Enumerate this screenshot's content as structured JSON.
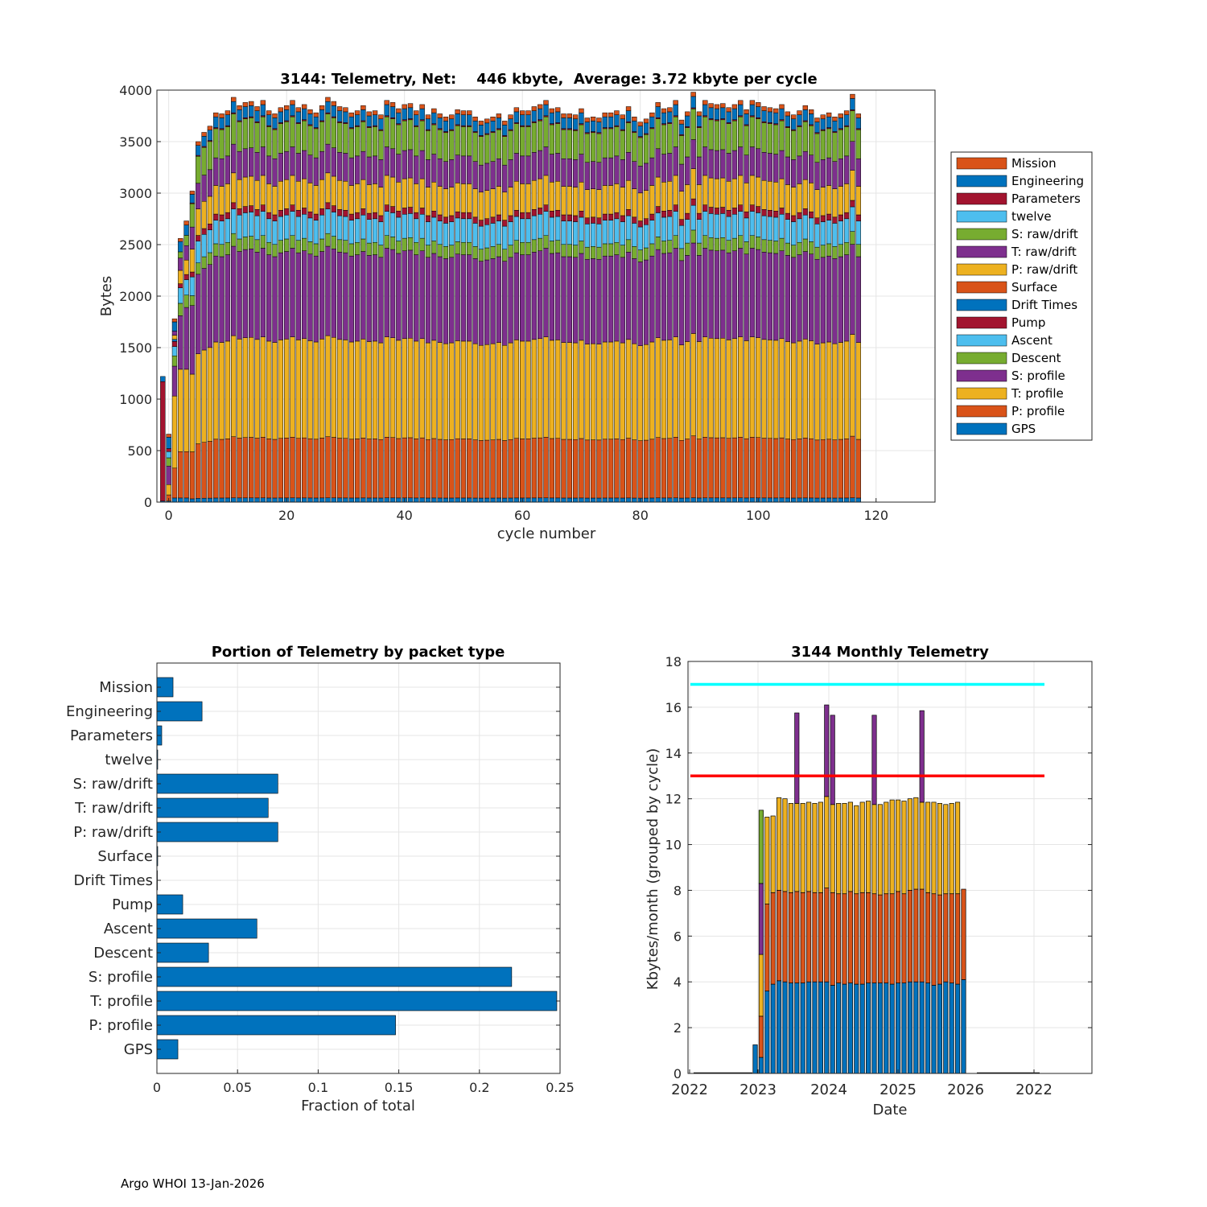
{
  "footer": "Argo WHOI 13-Jan-2026",
  "colors": {
    "blue": "#0072BD",
    "orange": "#D95319",
    "yellow": "#EDB120",
    "purple": "#7E2F8E",
    "green": "#77AC30",
    "cyan": "#4DBEEE",
    "red": "#A2142F",
    "limit_high": "#00FFFF",
    "limit_low": "#FF0000"
  },
  "chart_data": [
    {
      "id": "telemetry_per_cycle",
      "type": "bar",
      "stacked": true,
      "title": "3144: Telemetry, Net:    446 kbyte,  Average: 3.72 kbyte per cycle",
      "xlabel": "cycle number",
      "ylabel": "Bytes",
      "xlim": [
        -2,
        130
      ],
      "ylim": [
        0,
        4000
      ],
      "xticks": [
        0,
        20,
        40,
        60,
        80,
        100,
        120
      ],
      "yticks": [
        0,
        500,
        1000,
        1500,
        2000,
        2500,
        3000,
        3500,
        4000
      ],
      "grid": true,
      "legend_position": "right",
      "cycles_first": -1,
      "cycles_last": 118,
      "series_order_bottom_to_top": [
        "GPS",
        "P: profile",
        "T: profile",
        "S: profile",
        "Descent",
        "Ascent",
        "Pump",
        "Drift Times",
        "Surface",
        "P: raw/drift",
        "T: raw/drift",
        "S: raw/drift",
        "twelve",
        "Parameters",
        "Engineering",
        "Mission"
      ],
      "series": [
        {
          "name": "GPS",
          "color": "#0072BD",
          "typical": 40
        },
        {
          "name": "P: profile",
          "color": "#D95319",
          "typical": 575
        },
        {
          "name": "T: profile",
          "color": "#EDB120",
          "typical": 950
        },
        {
          "name": "S: profile",
          "color": "#7E2F8E",
          "typical": 840
        },
        {
          "name": "Descent",
          "color": "#77AC30",
          "typical": 120
        },
        {
          "name": "Ascent",
          "color": "#4DBEEE",
          "typical": 230
        },
        {
          "name": "Pump",
          "color": "#A2142F",
          "typical": 60
        },
        {
          "name": "Drift Times",
          "color": "#0072BD",
          "typical": 0
        },
        {
          "name": "Surface",
          "color": "#D95319",
          "typical": 0
        },
        {
          "name": "P: raw/drift",
          "color": "#EDB120",
          "typical": 280
        },
        {
          "name": "T: raw/drift",
          "color": "#7E2F8E",
          "typical": 270
        },
        {
          "name": "S: raw/drift",
          "color": "#77AC30",
          "typical": 285
        },
        {
          "name": "twelve",
          "color": "#4DBEEE",
          "typical": 0
        },
        {
          "name": "Parameters",
          "color": "#A2142F",
          "typical": 10
        },
        {
          "name": "Engineering",
          "color": "#0072BD",
          "typical": 105
        },
        {
          "name": "Mission",
          "color": "#D95319",
          "typical": 40
        }
      ],
      "total_values": [
        1220,
        670,
        1770,
        2560,
        2730,
        3020,
        3500,
        3590,
        3650,
        3780,
        3770,
        3800,
        3930,
        3850,
        3880,
        3890,
        3840,
        3900,
        3800,
        3770,
        3830,
        3850,
        3900,
        3830,
        3860,
        3810,
        3780,
        3850,
        3930,
        3890,
        3840,
        3830,
        3780,
        3800,
        3850,
        3790,
        3800,
        3760,
        3900,
        3880,
        3820,
        3860,
        3870,
        3800,
        3860,
        3760,
        3820,
        3770,
        3740,
        3760,
        3810,
        3800,
        3800,
        3740,
        3700,
        3720,
        3740,
        3770,
        3700,
        3760,
        3830,
        3800,
        3800,
        3840,
        3860,
        3900,
        3820,
        3830,
        3770,
        3770,
        3760,
        3820,
        3730,
        3740,
        3730,
        3780,
        3780,
        3800,
        3760,
        3840,
        3740,
        3690,
        3720,
        3780,
        3880,
        3820,
        3830,
        3900,
        3710,
        3790,
        3980,
        3790,
        3900,
        3870,
        3860,
        3870,
        3830,
        3860,
        3900,
        3810,
        3900,
        3880,
        3840,
        3830,
        3820,
        3860,
        3790,
        3760,
        3800,
        3850,
        3810,
        3730,
        3760,
        3780,
        3740,
        3770,
        3800,
        3960,
        3770
      ],
      "legend": [
        "Mission",
        "Engineering",
        "Parameters",
        "twelve",
        "S: raw/drift",
        "T: raw/drift",
        "P: raw/drift",
        "Surface",
        "Drift Times",
        "Pump",
        "Ascent",
        "Descent",
        "S: profile",
        "T: profile",
        "P: profile",
        "GPS"
      ]
    },
    {
      "id": "portion_by_packet_type",
      "type": "bar",
      "orientation": "horizontal",
      "title": "Portion of Telemetry by packet type",
      "xlabel": "Fraction of total",
      "ylabel": "",
      "xlim": [
        0,
        0.25
      ],
      "xticks": [
        "0",
        "0.05",
        "0.1",
        "0.15",
        "0.2",
        "0.25"
      ],
      "grid": true,
      "color": "#0072BD",
      "categories": [
        "Mission",
        "Engineering",
        "Parameters",
        "twelve",
        "S: raw/drift",
        "T: raw/drift",
        "P: raw/drift",
        "Surface",
        "Drift Times",
        "Pump",
        "Ascent",
        "Descent",
        "S: profile",
        "T: profile",
        "P: profile",
        "GPS"
      ],
      "values": [
        0.01,
        0.028,
        0.003,
        0.0005,
        0.075,
        0.069,
        0.075,
        0.0005,
        0.0003,
        0.016,
        0.062,
        0.032,
        0.22,
        0.248,
        0.148,
        0.013
      ]
    },
    {
      "id": "monthly_telemetry",
      "type": "bar",
      "stacked": true,
      "title": "3144 Monthly Telemetry",
      "xlabel": "Date",
      "ylabel": "Kbytes/month (grouped by cycle)",
      "ylim": [
        0,
        18
      ],
      "yticks": [
        0,
        2,
        4,
        6,
        8,
        10,
        12,
        14,
        16,
        18
      ],
      "xtick_labels": [
        "2022",
        "2023",
        "2024",
        "2025",
        "2026",
        "2022"
      ],
      "grid": true,
      "reference_lines": [
        {
          "value": 17,
          "color": "#00FFFF"
        },
        {
          "value": 13,
          "color": "#FF0000"
        }
      ],
      "series_names": [
        "blue",
        "orange",
        "yellow",
        "purple",
        "green"
      ],
      "months": [
        {
          "blue": 1.25,
          "orange": 0,
          "yellow": 0,
          "purple": 0,
          "green": 0
        },
        {
          "blue": 0.7,
          "orange": 1.8,
          "yellow": 2.7,
          "purple": 3.1,
          "green": 3.2
        },
        {
          "blue": 3.6,
          "orange": 3.8,
          "yellow": 3.8,
          "purple": 0,
          "green": 0
        },
        {
          "blue": 3.9,
          "orange": 4.0,
          "yellow": 3.35,
          "purple": 0,
          "green": 0
        },
        {
          "blue": 4.05,
          "orange": 3.95,
          "yellow": 4.05,
          "purple": 0,
          "green": 0
        },
        {
          "blue": 4.0,
          "orange": 3.95,
          "yellow": 4.05,
          "purple": 0,
          "green": 0
        },
        {
          "blue": 3.95,
          "orange": 3.95,
          "yellow": 3.9,
          "purple": 0,
          "green": 0
        },
        {
          "blue": 3.95,
          "orange": 4.0,
          "yellow": 3.85,
          "purple": 3.95,
          "green": 0
        },
        {
          "blue": 3.95,
          "orange": 3.95,
          "yellow": 3.9,
          "purple": 0,
          "green": 0
        },
        {
          "blue": 4.0,
          "orange": 3.95,
          "yellow": 3.9,
          "purple": 0,
          "green": 0
        },
        {
          "blue": 4.0,
          "orange": 3.9,
          "yellow": 3.9,
          "purple": 0,
          "green": 0
        },
        {
          "blue": 4.0,
          "orange": 3.9,
          "yellow": 3.95,
          "purple": 0,
          "green": 0
        },
        {
          "blue": 4.0,
          "orange": 4.1,
          "yellow": 4.0,
          "purple": 4.0,
          "green": 0
        },
        {
          "blue": 3.85,
          "orange": 4.05,
          "yellow": 3.85,
          "purple": 3.9,
          "green": 0
        },
        {
          "blue": 3.95,
          "orange": 3.9,
          "yellow": 3.95,
          "purple": 0,
          "green": 0
        },
        {
          "blue": 3.9,
          "orange": 3.95,
          "yellow": 3.95,
          "purple": 0,
          "green": 0
        },
        {
          "blue": 3.95,
          "orange": 4.0,
          "yellow": 3.9,
          "purple": 0,
          "green": 0
        },
        {
          "blue": 3.9,
          "orange": 3.95,
          "yellow": 3.85,
          "purple": 0,
          "green": 0
        },
        {
          "blue": 3.9,
          "orange": 4.0,
          "yellow": 3.95,
          "purple": 0,
          "green": 0
        },
        {
          "blue": 3.95,
          "orange": 3.95,
          "yellow": 4.0,
          "purple": 0,
          "green": 0
        },
        {
          "blue": 3.95,
          "orange": 3.9,
          "yellow": 3.9,
          "purple": 3.9,
          "green": 0
        },
        {
          "blue": 3.95,
          "orange": 3.85,
          "yellow": 3.95,
          "purple": 0,
          "green": 0
        },
        {
          "blue": 3.95,
          "orange": 3.9,
          "yellow": 4.0,
          "purple": 0,
          "green": 0
        },
        {
          "blue": 3.9,
          "orange": 3.95,
          "yellow": 4.1,
          "purple": 0,
          "green": 0
        },
        {
          "blue": 3.95,
          "orange": 4.0,
          "yellow": 4.0,
          "purple": 0,
          "green": 0
        },
        {
          "blue": 3.95,
          "orange": 3.9,
          "yellow": 4.05,
          "purple": 0,
          "green": 0
        },
        {
          "blue": 4.0,
          "orange": 4.0,
          "yellow": 4.0,
          "purple": 0,
          "green": 0
        },
        {
          "blue": 4.0,
          "orange": 4.05,
          "yellow": 4.0,
          "purple": 0,
          "green": 0
        },
        {
          "blue": 4.0,
          "orange": 4.05,
          "yellow": 3.8,
          "purple": 4.0,
          "green": 0
        },
        {
          "blue": 3.95,
          "orange": 3.95,
          "yellow": 3.95,
          "purple": 0,
          "green": 0
        },
        {
          "blue": 3.85,
          "orange": 4.0,
          "yellow": 4.0,
          "purple": 0,
          "green": 0
        },
        {
          "blue": 3.9,
          "orange": 3.9,
          "yellow": 4.0,
          "purple": 0,
          "green": 0
        },
        {
          "blue": 4.0,
          "orange": 3.85,
          "yellow": 3.9,
          "purple": 0,
          "green": 0
        },
        {
          "blue": 3.95,
          "orange": 3.9,
          "yellow": 3.95,
          "purple": 0,
          "green": 0
        },
        {
          "blue": 3.9,
          "orange": 3.95,
          "yellow": 4.0,
          "purple": 0,
          "green": 0
        },
        {
          "blue": 4.1,
          "orange": 3.95,
          "yellow": 0,
          "purple": 0,
          "green": 0
        }
      ]
    }
  ]
}
